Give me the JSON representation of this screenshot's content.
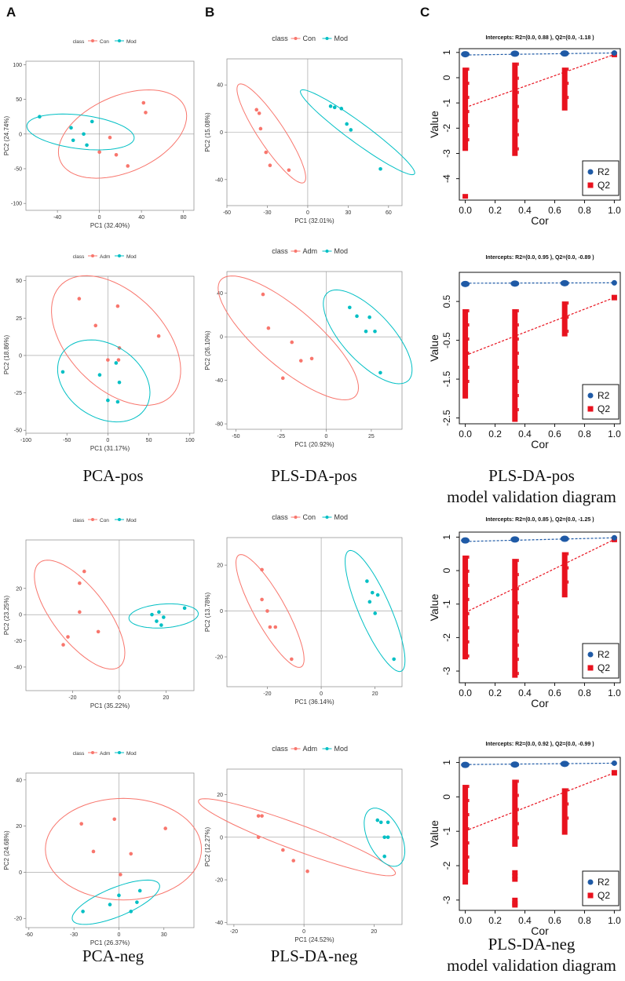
{
  "panel_letters": [
    "A",
    "B",
    "C"
  ],
  "captions": {
    "pca_pos": "PCA-pos",
    "pls_pos": "PLS-DA-pos",
    "val_pos_1": "PLS-DA-pos",
    "val_pos_2": "model validation diagram",
    "pca_neg": "PCA-neg",
    "pls_neg": "PLS-DA-neg",
    "val_neg_1": "PLS-DA-neg",
    "val_neg_2": "model validation diagram"
  },
  "colors": {
    "group_a": "#f8766d",
    "group_b": "#00bfc4",
    "r2": "#1f5aa6",
    "q2": "#e8121e"
  },
  "chart_data": [
    {
      "id": "pca_pos_con_mod",
      "type": "scatter",
      "legend_title": "class",
      "legend": [
        "Con",
        "Mod"
      ],
      "xlabel": "PC1 (32.40%)",
      "ylabel": "PC2 (24.74%)",
      "xlim": [
        -70,
        90
      ],
      "ylim": [
        -110,
        105
      ],
      "xticks": [
        -40,
        0,
        40,
        80
      ],
      "yticks": [
        -100,
        -50,
        0,
        50,
        100
      ],
      "series": [
        {
          "name": "Con",
          "points": [
            [
              0,
              -26
            ],
            [
              10,
              -5
            ],
            [
              16,
              -30
            ],
            [
              27,
              -46
            ],
            [
              42,
              45
            ],
            [
              44,
              31
            ]
          ],
          "ellipse": {
            "cx": 22,
            "cy": 0,
            "rx": 74,
            "ry": 48,
            "angle": 48
          }
        },
        {
          "name": "Mod",
          "points": [
            [
              -57,
              25
            ],
            [
              -27,
              9
            ],
            [
              -25,
              -9
            ],
            [
              -15,
              0
            ],
            [
              -12,
              -16
            ],
            [
              -7,
              18
            ]
          ],
          "ellipse": {
            "cx": -18,
            "cy": 3,
            "rx": 52,
            "ry": 24,
            "angle": -12
          }
        }
      ]
    },
    {
      "id": "pls_pos_con_mod",
      "type": "scatter",
      "legend_title": "class",
      "legend": [
        "Con",
        "Mod"
      ],
      "xlabel": "PC1 (32.01%)",
      "ylabel": "PC2 (15.08%)",
      "xlim": [
        -60,
        70
      ],
      "ylim": [
        -62,
        62
      ],
      "xticks": [
        -60,
        -30,
        0,
        30,
        60
      ],
      "yticks": [
        -40,
        0,
        40
      ],
      "series": [
        {
          "name": "Con",
          "points": [
            [
              -38,
              19
            ],
            [
              -36,
              16
            ],
            [
              -35,
              3
            ],
            [
              -31,
              -17
            ],
            [
              -28,
              -28
            ],
            [
              -14,
              -32
            ]
          ],
          "ellipse": {
            "cx": -27,
            "cy": -1,
            "rx": 48,
            "ry": 10,
            "angle": -60
          }
        },
        {
          "name": "Mod",
          "points": [
            [
              17,
              22
            ],
            [
              20,
              21
            ],
            [
              25,
              20
            ],
            [
              29,
              7
            ],
            [
              32,
              2
            ],
            [
              54,
              -31
            ]
          ],
          "ellipse": {
            "cx": 37,
            "cy": 0,
            "rx": 55,
            "ry": 8,
            "angle": -40
          }
        }
      ]
    },
    {
      "id": "val_pos_con_mod",
      "type": "scatter",
      "title": "Intercepts: R2=(0.0, 0.88 ), Q2=(0.0, -1.18 )",
      "xlabel": "Cor",
      "ylabel": "Value",
      "xlim": [
        -0.04,
        1.04
      ],
      "ylim": [
        -4.85,
        1.15
      ],
      "xticks": [
        0.0,
        0.2,
        0.4,
        0.6,
        0.8,
        1.0
      ],
      "yticks": [
        1,
        0,
        -1,
        -2,
        -3,
        -4
      ],
      "legend": [
        "R2",
        "Q2"
      ],
      "r2_intercept": [
        0.0,
        0.88
      ],
      "q2_intercept": [
        0.0,
        -1.18
      ],
      "r2_points": [
        [
          0,
          0.93
        ],
        [
          0.333,
          0.95
        ],
        [
          0.667,
          0.96
        ],
        [
          1.0,
          0.98
        ]
      ],
      "q2_points": [
        [
          1.0,
          0.92
        ]
      ],
      "q2_clusters": [
        {
          "x": 0,
          "min": -2.9,
          "max": 0.4
        },
        {
          "x": 0.333,
          "min": -3.1,
          "max": 0.6
        },
        {
          "x": 0.667,
          "min": -1.3,
          "max": 0.4
        }
      ],
      "q2_outliers": [
        [
          0,
          -4.7
        ]
      ]
    },
    {
      "id": "pca_pos_adm_mod",
      "type": "scatter",
      "legend_title": "class",
      "legend": [
        "Adm",
        "Mod"
      ],
      "xlabel": "PC1 (31.17%)",
      "ylabel": "PC2 (18.86%)",
      "xlim": [
        -100,
        105
      ],
      "ylim": [
        -52,
        53
      ],
      "xticks": [
        -100,
        -50,
        0,
        50,
        100
      ],
      "yticks": [
        -50,
        -25,
        0,
        25,
        50
      ],
      "series": [
        {
          "name": "Adm",
          "points": [
            [
              -35,
              38
            ],
            [
              -15,
              20
            ],
            [
              0,
              -3
            ],
            [
              12,
              33
            ],
            [
              14,
              5
            ],
            [
              62,
              13
            ],
            [
              13,
              -3
            ]
          ],
          "ellipse": {
            "cx": 10,
            "cy": 10,
            "rx": 82,
            "ry": 37,
            "angle": -18
          }
        },
        {
          "name": "Mod",
          "points": [
            [
              -55,
              -11
            ],
            [
              -10,
              -13
            ],
            [
              0,
              -30
            ],
            [
              10,
              -5
            ],
            [
              14,
              -18
            ],
            [
              12,
              -31
            ]
          ],
          "ellipse": {
            "cx": -5,
            "cy": -17,
            "rx": 57,
            "ry": 26,
            "angle": -10
          }
        }
      ]
    },
    {
      "id": "pls_pos_adm_mod",
      "type": "scatter",
      "legend_title": "class",
      "legend": [
        "Adm",
        "Mod"
      ],
      "xlabel": "PC1 (20.92%)",
      "ylabel": "PC2 (26.10%)",
      "xlim": [
        -55,
        42
      ],
      "ylim": [
        -85,
        60
      ],
      "xticks": [
        -50,
        -25,
        0,
        25
      ],
      "yticks": [
        -80,
        -40,
        0,
        40
      ],
      "series": [
        {
          "name": "Adm",
          "points": [
            [
              -35,
              39
            ],
            [
              -32,
              8
            ],
            [
              -19,
              -5
            ],
            [
              -14,
              -22
            ],
            [
              -8,
              -20
            ],
            [
              -24,
              -38
            ]
          ],
          "ellipse": {
            "cx": -21,
            "cy": -1,
            "rx": 66,
            "ry": 20,
            "angle": -58
          }
        },
        {
          "name": "Mod",
          "points": [
            [
              13,
              27
            ],
            [
              17,
              19
            ],
            [
              24,
              18
            ],
            [
              22,
              5
            ],
            [
              27,
              5
            ],
            [
              30,
              -33
            ]
          ],
          "ellipse": {
            "cx": 23,
            "cy": 0,
            "rx": 47,
            "ry": 16,
            "angle": -65
          }
        }
      ]
    },
    {
      "id": "val_pos_adm_mod",
      "type": "scatter",
      "title": "Intercepts: R2=(0.0, 0.95 ), Q2=(0.0, -0.89 )",
      "xlabel": "Cor",
      "ylabel": "Value",
      "xlim": [
        -0.04,
        1.04
      ],
      "ylim": [
        -2.65,
        1.25
      ],
      "xticks": [
        0.0,
        0.2,
        0.4,
        0.6,
        0.8,
        1.0
      ],
      "yticks": [
        0.5,
        -0.5,
        -1.5,
        -2.5
      ],
      "legend": [
        "R2",
        "Q2"
      ],
      "r2_intercept": [
        0.0,
        0.95
      ],
      "q2_intercept": [
        0.0,
        -0.89
      ],
      "r2_points": [
        [
          0,
          0.95
        ],
        [
          0.333,
          0.96
        ],
        [
          0.667,
          0.97
        ],
        [
          1.0,
          0.98
        ]
      ],
      "q2_points": [
        [
          1.0,
          0.6
        ]
      ],
      "q2_clusters": [
        {
          "x": 0,
          "min": -2.0,
          "max": 0.3
        },
        {
          "x": 0.333,
          "min": -2.6,
          "max": 0.3
        },
        {
          "x": 0.667,
          "min": -0.4,
          "max": 0.5
        }
      ],
      "q2_outliers": []
    },
    {
      "id": "pca_neg_con_mod",
      "type": "scatter",
      "legend_title": "class",
      "legend": [
        "Con",
        "Mod"
      ],
      "xlabel": "PC1 (35.22%)",
      "ylabel": "PC2 (23.25%)",
      "xlim": [
        -40,
        32
      ],
      "ylim": [
        -58,
        57
      ],
      "xticks": [
        -20,
        0,
        20
      ],
      "yticks": [
        -40,
        -20,
        0,
        20
      ],
      "series": [
        {
          "name": "Con",
          "points": [
            [
              -24,
              -23
            ],
            [
              -22,
              -17
            ],
            [
              -17,
              2
            ],
            [
              -17,
              24
            ],
            [
              -15,
              33
            ],
            [
              -9,
              -13
            ]
          ],
          "ellipse": {
            "cx": -17,
            "cy": 0,
            "rx": 44,
            "ry": 13,
            "angle": -70
          }
        },
        {
          "name": "Mod",
          "points": [
            [
              14,
              0
            ],
            [
              17,
              2
            ],
            [
              18,
              -8
            ],
            [
              19,
              -2
            ],
            [
              28,
              5
            ],
            [
              16,
              -5
            ]
          ],
          "ellipse": {
            "cx": 19,
            "cy": -1,
            "rx": 15,
            "ry": 9,
            "angle": 10
          }
        }
      ]
    },
    {
      "id": "pls_neg_con_mod",
      "type": "scatter",
      "legend_title": "class",
      "legend": [
        "Con",
        "Mod"
      ],
      "xlabel": "PC1 (36.14%)",
      "ylabel": "PC2 (13.78%)",
      "xlim": [
        -35,
        30
      ],
      "ylim": [
        -33,
        32
      ],
      "xticks": [
        -20,
        0,
        20
      ],
      "yticks": [
        -20,
        0,
        20
      ],
      "series": [
        {
          "name": "Con",
          "points": [
            [
              -22,
              18
            ],
            [
              -22,
              5
            ],
            [
              -20,
              0
            ],
            [
              -19,
              -7
            ],
            [
              -17,
              -7
            ],
            [
              -11,
              -21
            ]
          ],
          "ellipse": {
            "cx": -19,
            "cy": 0,
            "rx": 27,
            "ry": 6,
            "angle": -65
          }
        },
        {
          "name": "Mod",
          "points": [
            [
              17,
              13
            ],
            [
              19,
              8
            ],
            [
              18,
              4
            ],
            [
              21,
              7
            ],
            [
              20,
              -1
            ],
            [
              27,
              -21
            ]
          ],
          "ellipse": {
            "cx": 20,
            "cy": 0,
            "rx": 28,
            "ry": 6,
            "angle": -70
          }
        }
      ]
    },
    {
      "id": "val_neg_con_mod",
      "type": "scatter",
      "title": "Intercepts: R2=(0.0, 0.85 ), Q2=(0.0, -1.25 )",
      "xlabel": "Cor",
      "ylabel": "Value",
      "xlim": [
        -0.04,
        1.04
      ],
      "ylim": [
        -3.35,
        1.15
      ],
      "xticks": [
        0.0,
        0.2,
        0.4,
        0.6,
        0.8,
        1.0
      ],
      "yticks": [
        1,
        0,
        -1,
        -2,
        -3
      ],
      "legend": [
        "R2",
        "Q2"
      ],
      "r2_intercept": [
        0.0,
        0.85
      ],
      "q2_intercept": [
        0.0,
        -1.25
      ],
      "r2_points": [
        [
          0,
          0.9
        ],
        [
          0.333,
          0.93
        ],
        [
          0.667,
          0.95
        ],
        [
          1.0,
          0.98
        ]
      ],
      "q2_points": [
        [
          1.0,
          0.93
        ]
      ],
      "q2_clusters": [
        {
          "x": 0,
          "min": -2.65,
          "max": 0.45
        },
        {
          "x": 0.333,
          "min": -3.2,
          "max": 0.35
        },
        {
          "x": 0.667,
          "min": -0.8,
          "max": 0.55
        }
      ],
      "q2_outliers": []
    },
    {
      "id": "pca_neg_adm_mod",
      "type": "scatter",
      "legend_title": "class",
      "legend": [
        "Adm",
        "Mod"
      ],
      "xlabel": "PC1 (26.37%)",
      "ylabel": "PC2 (24.68%)",
      "xlim": [
        -62,
        50
      ],
      "ylim": [
        -24,
        43
      ],
      "xticks": [
        -60,
        -30,
        0,
        30
      ],
      "yticks": [
        -20,
        0,
        20,
        40
      ],
      "series": [
        {
          "name": "Adm",
          "points": [
            [
              -25,
              21
            ],
            [
              -17,
              9
            ],
            [
              -3,
              23
            ],
            [
              8,
              8
            ],
            [
              31,
              19
            ],
            [
              1,
              -1
            ]
          ],
          "ellipse": {
            "cx": 3,
            "cy": 10,
            "rx": 52,
            "ry": 22,
            "angle": 0
          }
        },
        {
          "name": "Mod",
          "points": [
            [
              -24,
              -17
            ],
            [
              -6,
              -14
            ],
            [
              0,
              -10
            ],
            [
              8,
              -17
            ],
            [
              12,
              -13
            ],
            [
              14,
              -8
            ]
          ],
          "ellipse": {
            "cx": -2,
            "cy": -13,
            "rx": 30,
            "ry": 6.5,
            "angle": 14
          }
        }
      ]
    },
    {
      "id": "pls_neg_adm_mod",
      "type": "scatter",
      "legend_title": "class",
      "legend": [
        "Adm",
        "Mod"
      ],
      "xlabel": "PC1 (24.52%)",
      "ylabel": "PC2 (12.27%)",
      "xlim": [
        -22,
        28
      ],
      "ylim": [
        -41,
        32
      ],
      "xticks": [
        -20,
        0,
        20
      ],
      "yticks": [
        -40,
        -20,
        0,
        20
      ],
      "series": [
        {
          "name": "Adm",
          "points": [
            [
              -13,
              10
            ],
            [
              -13,
              0
            ],
            [
              -6,
              -6
            ],
            [
              -3,
              -11
            ],
            [
              1,
              -16
            ],
            [
              -12,
              10
            ]
          ],
          "ellipse": {
            "cx": -2,
            "cy": 0,
            "rx": 33,
            "ry": 5.5,
            "angle": -32
          }
        },
        {
          "name": "Mod",
          "points": [
            [
              21,
              8
            ],
            [
              22,
              7
            ],
            [
              23,
              0
            ],
            [
              24,
              0
            ],
            [
              23,
              -9
            ],
            [
              24,
              7
            ]
          ],
          "ellipse": {
            "cx": 23,
            "cy": 0,
            "rx": 14,
            "ry": 5,
            "angle": -77
          }
        }
      ]
    },
    {
      "id": "val_neg_adm_mod",
      "type": "scatter",
      "title": "Intercepts: R2=(0.0, 0.92 ), Q2=(0.0, -0.99 )",
      "xlabel": "Cor",
      "ylabel": "Value",
      "xlim": [
        -0.04,
        1.04
      ],
      "ylim": [
        -3.3,
        1.15
      ],
      "xticks": [
        0.0,
        0.2,
        0.4,
        0.6,
        0.8,
        1.0
      ],
      "yticks": [
        1,
        0,
        -1,
        -2,
        -3
      ],
      "legend": [
        "R2",
        "Q2"
      ],
      "r2_intercept": [
        0.0,
        0.92
      ],
      "q2_intercept": [
        0.0,
        -0.99
      ],
      "r2_points": [
        [
          0,
          0.93
        ],
        [
          0.333,
          0.94
        ],
        [
          0.667,
          0.96
        ],
        [
          1.0,
          0.98
        ]
      ],
      "q2_points": [
        [
          1.0,
          0.7
        ]
      ],
      "q2_clusters": [
        {
          "x": 0,
          "min": -2.55,
          "max": 0.35
        },
        {
          "x": 0.333,
          "min": -1.45,
          "max": 0.5
        },
        {
          "x": 0.667,
          "min": -1.1,
          "max": 0.25
        }
      ],
      "q2_outliers": [
        [
          0.333,
          -2.2
        ],
        [
          0.333,
          -2.3
        ],
        [
          0.333,
          -2.4
        ],
        [
          0.333,
          -3.0
        ],
        [
          0.333,
          -3.1
        ],
        [
          0.333,
          -3.15
        ]
      ]
    }
  ]
}
